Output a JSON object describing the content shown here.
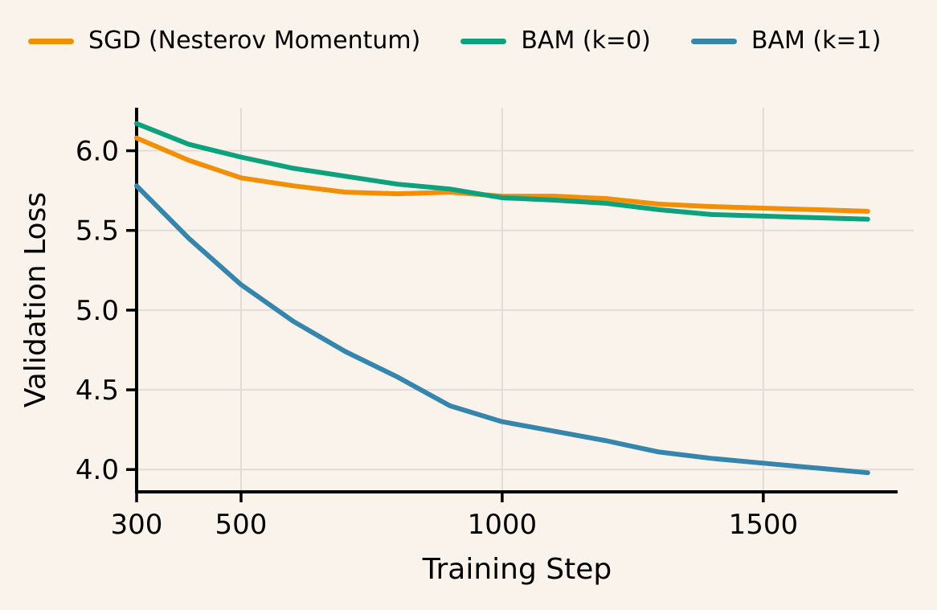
{
  "chart_data": {
    "type": "line",
    "x": [
      300,
      400,
      500,
      600,
      700,
      800,
      900,
      1000,
      1100,
      1200,
      1300,
      1400,
      1500,
      1600,
      1700
    ],
    "series": [
      {
        "name": "SGD (Nesterov Momentum)",
        "color": "#f28f05",
        "values": [
          6.08,
          5.94,
          5.83,
          5.78,
          5.74,
          5.73,
          5.74,
          5.715,
          5.715,
          5.7,
          5.665,
          5.65,
          5.64,
          5.63,
          5.62
        ]
      },
      {
        "name": "BAM (k=0)",
        "color": "#0ea17d",
        "values": [
          6.17,
          6.04,
          5.96,
          5.89,
          5.84,
          5.79,
          5.76,
          5.705,
          5.69,
          5.67,
          5.63,
          5.6,
          5.59,
          5.58,
          5.57
        ]
      },
      {
        "name": "BAM (k=1)",
        "color": "#3585ac",
        "values": [
          5.78,
          5.45,
          5.16,
          4.93,
          4.74,
          4.58,
          4.4,
          4.3,
          4.24,
          4.18,
          4.11,
          4.07,
          4.04,
          4.01,
          3.98
        ]
      }
    ],
    "title": "",
    "xlabel": "Training Step",
    "ylabel": "Validation Loss",
    "xticks": [
      300,
      500,
      1000,
      1500
    ],
    "xtick_labels": [
      "300",
      "500",
      "1000",
      "1500"
    ],
    "yticks": [
      4.0,
      4.5,
      5.0,
      5.5,
      6.0
    ],
    "ytick_labels": [
      "4.0",
      "4.5",
      "5.0",
      "5.5",
      "6.0"
    ],
    "xlim": [
      300,
      1788
    ],
    "ylim": [
      3.86,
      6.27
    ],
    "grid": true,
    "legend_position": "top",
    "background_color": "#faf3eb",
    "grid_color": "#e0dcd6",
    "text_color": "#000000"
  }
}
